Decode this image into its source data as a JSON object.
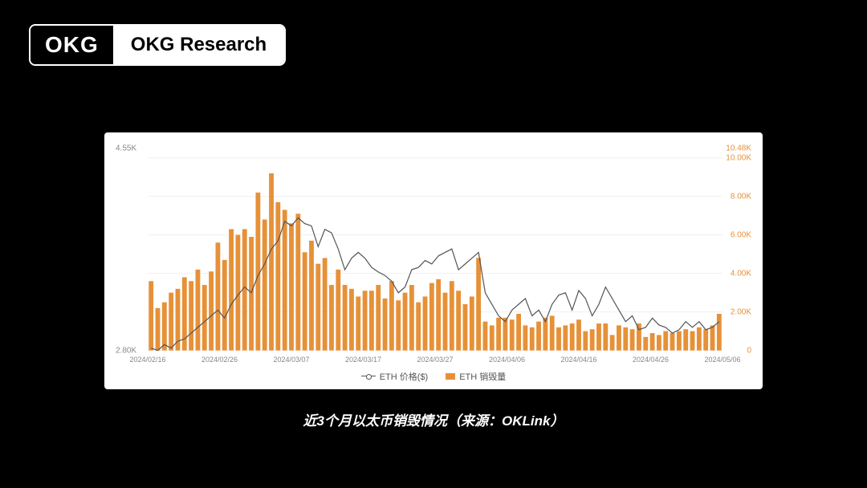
{
  "logo": {
    "left": "OKG",
    "right": "OKG Research"
  },
  "caption": "近3个月以太币销毁情况（来源：OKLink）",
  "chart": {
    "type": "bar+line",
    "background_color": "#ffffff",
    "grid_color": "#f0f0f0",
    "left_axis": {
      "label_color": "#888888",
      "label_fontsize": 10,
      "min": 2800,
      "max": 4550,
      "ticks": [
        {
          "value": 2800,
          "label": "2.80K"
        },
        {
          "value": 4550,
          "label": "4.55K"
        }
      ]
    },
    "right_axis": {
      "label_color": "#e69138",
      "label_fontsize": 10,
      "min": 0,
      "max": 10480,
      "ticks": [
        {
          "value": 0,
          "label": "0"
        },
        {
          "value": 2000,
          "label": "2.00K"
        },
        {
          "value": 4000,
          "label": "4.00K"
        },
        {
          "value": 6000,
          "label": "6.00K"
        },
        {
          "value": 8000,
          "label": "8.00K"
        },
        {
          "value": 10000,
          "label": "10.00K"
        },
        {
          "value": 10480,
          "label": "10.48K"
        }
      ]
    },
    "x_labels": [
      "2024/02/16",
      "2024/02/26",
      "2024/03/07",
      "2024/03/17",
      "2024/03/27",
      "2024/04/06",
      "2024/04/16",
      "2024/04/26",
      "2024/05/06"
    ],
    "legend": [
      {
        "type": "line",
        "label": "ETH 价格($)",
        "color": "#555555"
      },
      {
        "type": "bar",
        "label": "ETH 销毁量",
        "color": "#e69138"
      }
    ],
    "bar_color": "#e69138",
    "bar_width_ratio": 0.7,
    "line_color": "#555555",
    "line_width": 1.2,
    "bars": [
      3600,
      2200,
      2500,
      3000,
      3200,
      3800,
      3600,
      4200,
      3400,
      4100,
      5600,
      4700,
      6300,
      6000,
      6300,
      5900,
      8200,
      6800,
      9200,
      7700,
      7300,
      6600,
      7100,
      5100,
      5700,
      4500,
      4800,
      3400,
      4200,
      3400,
      3200,
      2800,
      3100,
      3100,
      3400,
      2700,
      3600,
      2600,
      3000,
      3400,
      2500,
      2800,
      3500,
      3700,
      3000,
      3600,
      3100,
      2400,
      2800,
      4800,
      1500,
      1300,
      1700,
      1700,
      1600,
      1900,
      1300,
      1200,
      1500,
      1700,
      1800,
      1200,
      1300,
      1400,
      1600,
      1000,
      1100,
      1400,
      1400,
      800,
      1300,
      1200,
      1100,
      1400,
      700,
      900,
      800,
      1000,
      900,
      1000,
      1100,
      1000,
      1200,
      1100,
      1300,
      1900
    ],
    "line_values": [
      2820,
      2800,
      2850,
      2820,
      2880,
      2900,
      2950,
      3000,
      3050,
      3100,
      3150,
      3080,
      3200,
      3280,
      3350,
      3300,
      3450,
      3550,
      3680,
      3750,
      3920,
      3880,
      3950,
      3900,
      3880,
      3700,
      3850,
      3820,
      3680,
      3500,
      3600,
      3650,
      3600,
      3520,
      3480,
      3450,
      3400,
      3300,
      3350,
      3500,
      3520,
      3580,
      3550,
      3620,
      3650,
      3680,
      3500,
      3550,
      3600,
      3650,
      3300,
      3200,
      3100,
      3050,
      3150,
      3200,
      3250,
      3100,
      3150,
      3050,
      3200,
      3280,
      3300,
      3150,
      3320,
      3250,
      3100,
      3200,
      3350,
      3250,
      3150,
      3050,
      3100,
      2980,
      3000,
      3080,
      3020,
      3000,
      2950,
      2980,
      3050,
      3000,
      3050,
      2980,
      3000,
      3050
    ]
  }
}
